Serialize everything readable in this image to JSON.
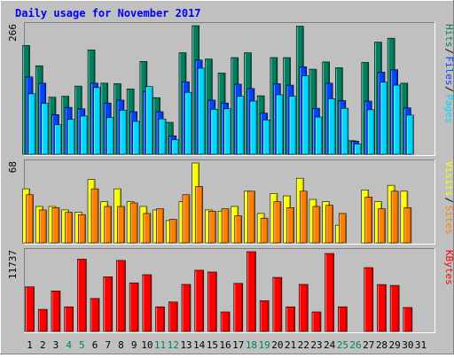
{
  "chart_data": {
    "title": "Daily usage for November 2017",
    "colors": {
      "frame": "#C0C0C0",
      "panel": "#C0C0C0",
      "title": "#0000FF",
      "hits": "#00805F",
      "files": "#0044FF",
      "pages": "#00D8FF",
      "visits": "#FFFF00",
      "sites": "#FF8000",
      "kbytes": "#FF0000",
      "weekday": "#000000",
      "weekend": "#00805F"
    },
    "days": [
      "1",
      "2",
      "3",
      "4",
      "5",
      "6",
      "7",
      "8",
      "9",
      "10",
      "11",
      "12",
      "13",
      "14",
      "15",
      "16",
      "17",
      "18",
      "19",
      "20",
      "21",
      "22",
      "23",
      "24",
      "25",
      "26",
      "27",
      "28",
      "29",
      "30",
      "31"
    ],
    "weekend_days": [
      4,
      5,
      11,
      12,
      18,
      19,
      25,
      26
    ],
    "charts": [
      {
        "type": "bar",
        "name": "hits-files-pages",
        "scale_label": "266",
        "ymax": 266,
        "legend": [
          {
            "text": "Hits",
            "color_key": "hits"
          },
          {
            "text": "Files",
            "color_key": "files"
          },
          {
            "text": "Pages",
            "color_key": "pages"
          }
        ],
        "series": [
          {
            "name": "Hits",
            "color_key": "hits",
            "values": [
              225,
              183,
              118,
              120,
              141,
              216,
              147,
              146,
              135,
              192,
              117,
              66,
              210,
              266,
              197,
              168,
              200,
              210,
              121,
              200,
              200,
              265,
              176,
              191,
              179,
              28,
              190,
              232,
              240,
              147,
              null
            ]
          },
          {
            "name": "Files",
            "color_key": "files",
            "values": [
              160,
              147,
              82,
              97,
              94,
              147,
              106,
              112,
              88,
              130,
              88,
              38,
              150,
              195,
              112,
              106,
              145,
              136,
              85,
              146,
              143,
              181,
              95,
              147,
              111,
              27,
              110,
              170,
              175,
              96,
              null
            ]
          },
          {
            "name": "Pages",
            "color_key": "pages",
            "values": [
              125,
              105,
              61,
              72,
              79,
              138,
              76,
              91,
              68,
              140,
              73,
              30,
              128,
              178,
              93,
              94,
              120,
              110,
              71,
              123,
              120,
              162,
              77,
              115,
              95,
              21,
              92,
              149,
              143,
              81,
              null
            ]
          }
        ]
      },
      {
        "type": "bar",
        "name": "visits-sites",
        "scale_label": "68",
        "ymax": 68,
        "legend": [
          {
            "text": "Visits",
            "color_key": "visits"
          },
          {
            "text": "Sites",
            "color_key": "sites"
          }
        ],
        "series": [
          {
            "name": "Visits",
            "color_key": "visits",
            "values": [
              46,
              31,
              31,
              28,
              26,
              54,
              35,
              46,
              35,
              31,
              28,
              19,
              35,
              68,
              28,
              27,
              31,
              44,
              25,
              42,
              40,
              55,
              37,
              35,
              15,
              null,
              45,
              35,
              49,
              44,
              null
            ]
          },
          {
            "name": "Sites",
            "color_key": "sites",
            "values": [
              41,
              28,
              30,
              26,
              24,
              46,
              31,
              31,
              34,
              25,
              29,
              20,
              41,
              48,
              27,
              29,
              23,
              44,
              21,
              35,
              30,
              44,
              31,
              32,
              25,
              null,
              39,
              29,
              44,
              30,
              null
            ]
          }
        ]
      },
      {
        "type": "bar",
        "name": "kbytes",
        "scale_label": "11737",
        "ymax": 11737,
        "legend": [
          {
            "text": "KBytes",
            "color_key": "kbytes"
          }
        ],
        "series": [
          {
            "name": "KBytes",
            "color_key": "kbytes",
            "values": [
              6560,
              3250,
              5960,
              3620,
              10630,
              4850,
              8040,
              10450,
              7150,
              8350,
              3620,
              4330,
              6920,
              9010,
              8740,
              2870,
              7070,
              11737,
              4520,
              7950,
              3620,
              6920,
              2870,
              11470,
              3620,
              null,
              9390,
              6900,
              6770,
              3520,
              null
            ]
          }
        ]
      }
    ]
  }
}
